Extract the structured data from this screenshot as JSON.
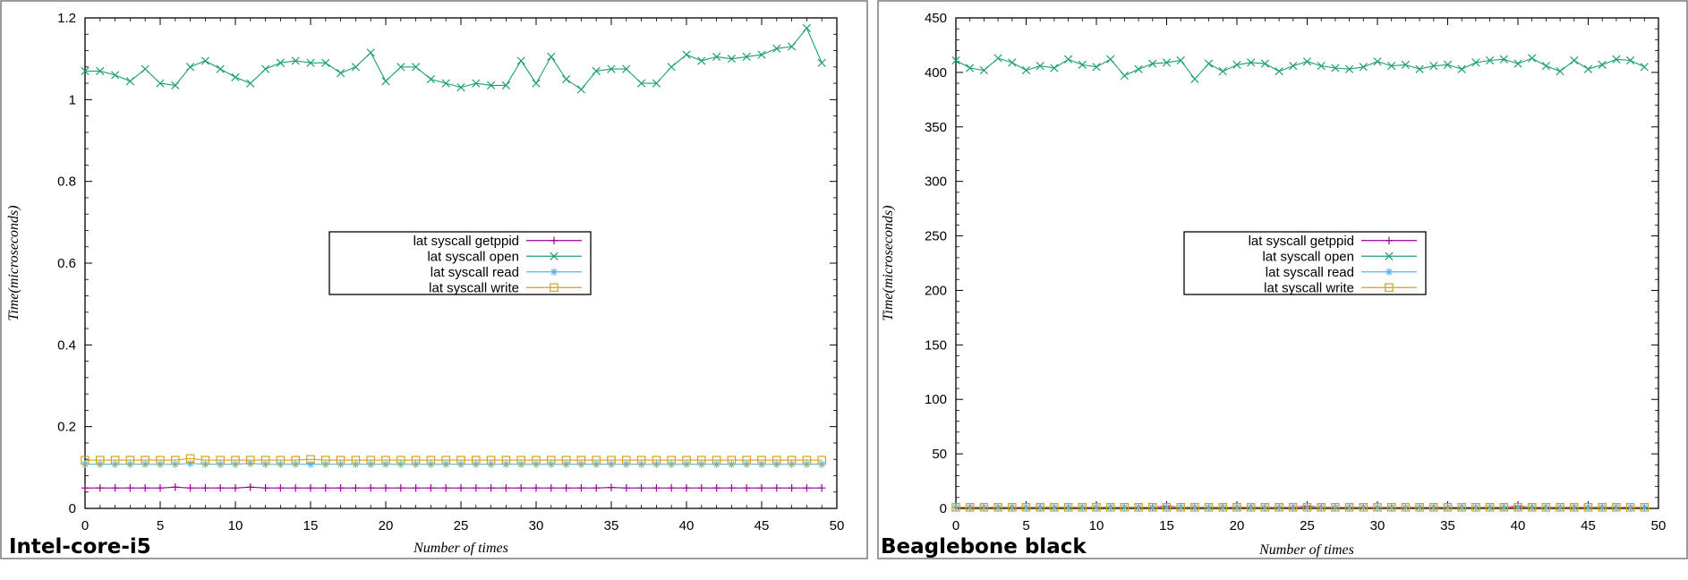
{
  "chart_data": [
    {
      "type": "line",
      "caption": "Intel-core-i5",
      "xlabel": "Number of times",
      "ylabel": "Time(microseconds)",
      "xlim": [
        0,
        50
      ],
      "ylim": [
        0,
        1.2
      ],
      "xticks": [
        "0",
        "5",
        "10",
        "15",
        "20",
        "25",
        "30",
        "35",
        "40",
        "45",
        "50"
      ],
      "yticks": [
        "0",
        "0.2",
        "0.4",
        "0.6",
        "0.8",
        "1",
        "1.2"
      ],
      "legend_position": "center",
      "grid": false,
      "series": [
        {
          "name": "lat syscall getppid",
          "color": "#9a009a",
          "marker": "plus",
          "values": [
            0.05,
            0.05,
            0.05,
            0.05,
            0.05,
            0.05,
            0.052,
            0.05,
            0.05,
            0.05,
            0.05,
            0.052,
            0.05,
            0.05,
            0.05,
            0.05,
            0.05,
            0.05,
            0.05,
            0.05,
            0.05,
            0.05,
            0.05,
            0.05,
            0.05,
            0.05,
            0.05,
            0.05,
            0.05,
            0.05,
            0.05,
            0.05,
            0.05,
            0.05,
            0.05,
            0.051,
            0.05,
            0.05,
            0.05,
            0.05,
            0.05,
            0.05,
            0.05,
            0.05,
            0.05,
            0.05,
            0.05,
            0.05,
            0.05,
            0.05
          ]
        },
        {
          "name": "lat syscall open",
          "color": "#1e9e73",
          "marker": "x",
          "values": [
            1.07,
            1.07,
            1.06,
            1.045,
            1.075,
            1.04,
            1.035,
            1.08,
            1.095,
            1.075,
            1.055,
            1.04,
            1.075,
            1.09,
            1.095,
            1.09,
            1.09,
            1.065,
            1.08,
            1.115,
            1.045,
            1.08,
            1.08,
            1.05,
            1.04,
            1.03,
            1.04,
            1.035,
            1.035,
            1.095,
            1.04,
            1.105,
            1.05,
            1.025,
            1.07,
            1.075,
            1.075,
            1.04,
            1.04,
            1.08,
            1.11,
            1.095,
            1.105,
            1.1,
            1.105,
            1.11,
            1.125,
            1.13,
            1.175,
            1.09
          ]
        },
        {
          "name": "lat syscall read",
          "color": "#55b4e9",
          "marker": "asterisk",
          "values": [
            0.108,
            0.108,
            0.108,
            0.108,
            0.108,
            0.108,
            0.108,
            0.11,
            0.108,
            0.108,
            0.108,
            0.11,
            0.108,
            0.108,
            0.108,
            0.108,
            0.108,
            0.108,
            0.108,
            0.108,
            0.108,
            0.108,
            0.108,
            0.108,
            0.108,
            0.108,
            0.108,
            0.108,
            0.108,
            0.108,
            0.108,
            0.108,
            0.108,
            0.108,
            0.108,
            0.108,
            0.108,
            0.108,
            0.108,
            0.108,
            0.108,
            0.108,
            0.108,
            0.108,
            0.108,
            0.108,
            0.108,
            0.108,
            0.108,
            0.108
          ]
        },
        {
          "name": "lat syscall write",
          "color": "#d4a020",
          "marker": "square",
          "values": [
            0.118,
            0.118,
            0.118,
            0.118,
            0.118,
            0.118,
            0.118,
            0.122,
            0.118,
            0.118,
            0.118,
            0.118,
            0.118,
            0.118,
            0.118,
            0.12,
            0.118,
            0.118,
            0.118,
            0.118,
            0.118,
            0.118,
            0.118,
            0.118,
            0.118,
            0.118,
            0.118,
            0.118,
            0.118,
            0.118,
            0.118,
            0.118,
            0.118,
            0.118,
            0.118,
            0.118,
            0.118,
            0.118,
            0.118,
            0.118,
            0.118,
            0.118,
            0.118,
            0.118,
            0.118,
            0.118,
            0.118,
            0.118,
            0.118,
            0.118
          ]
        }
      ]
    },
    {
      "type": "line",
      "caption": "Beaglebone black",
      "xlabel": "Number of times",
      "ylabel": "Time(microseconds)",
      "xlim": [
        0,
        50
      ],
      "ylim": [
        0,
        450
      ],
      "xticks": [
        "0",
        "5",
        "10",
        "15",
        "20",
        "25",
        "30",
        "35",
        "40",
        "45",
        "50"
      ],
      "yticks": [
        "0",
        "50",
        "100",
        "150",
        "200",
        "250",
        "300",
        "350",
        "400",
        "450"
      ],
      "legend_position": "center",
      "grid": false,
      "series": [
        {
          "name": "lat syscall getppid",
          "color": "#9a009a",
          "marker": "plus",
          "values": [
            1,
            1,
            1,
            1,
            1,
            1,
            1,
            1,
            1,
            1,
            1,
            1,
            1,
            1,
            1,
            2,
            1,
            1,
            1,
            1,
            1,
            1,
            1,
            1,
            1,
            2,
            1,
            1,
            1,
            1,
            1,
            1,
            1,
            1,
            1,
            1,
            1,
            1,
            1,
            1,
            2,
            1,
            1,
            1,
            1,
            1,
            1,
            1,
            1,
            1
          ]
        },
        {
          "name": "lat syscall open",
          "color": "#1e9e73",
          "marker": "x",
          "values": [
            411,
            404,
            402,
            413,
            409,
            402,
            406,
            404,
            412,
            407,
            405,
            412,
            397,
            403,
            408,
            409,
            411,
            394,
            408,
            401,
            407,
            409,
            408,
            401,
            406,
            410,
            406,
            404,
            403,
            405,
            410,
            406,
            407,
            403,
            406,
            407,
            403,
            409,
            411,
            412,
            408,
            413,
            406,
            401,
            411,
            403,
            407,
            412,
            411,
            405
          ]
        },
        {
          "name": "lat syscall read",
          "color": "#55b4e9",
          "marker": "asterisk",
          "values": [
            1,
            1,
            1,
            1,
            1,
            1,
            1,
            1,
            1,
            1,
            1,
            1,
            1,
            1,
            1,
            1,
            1,
            1,
            1,
            1,
            1,
            1,
            1,
            1,
            1,
            1,
            1,
            1,
            1,
            1,
            1,
            1,
            1,
            1,
            1,
            1,
            1,
            1,
            1,
            1,
            1,
            1,
            1,
            1,
            1,
            1,
            1,
            1,
            1,
            1
          ]
        },
        {
          "name": "lat syscall write",
          "color": "#d4a020",
          "marker": "square",
          "values": [
            1,
            1,
            1,
            1,
            1,
            1,
            1,
            1,
            1,
            1,
            1,
            1,
            1,
            1,
            1,
            1,
            1,
            1,
            1,
            1,
            1,
            1,
            1,
            1,
            1,
            1,
            1,
            1,
            1,
            1,
            1,
            1,
            1,
            1,
            1,
            1,
            1,
            1,
            1,
            1,
            1,
            1,
            1,
            1,
            1,
            1,
            1,
            1,
            1,
            1
          ]
        }
      ]
    }
  ]
}
